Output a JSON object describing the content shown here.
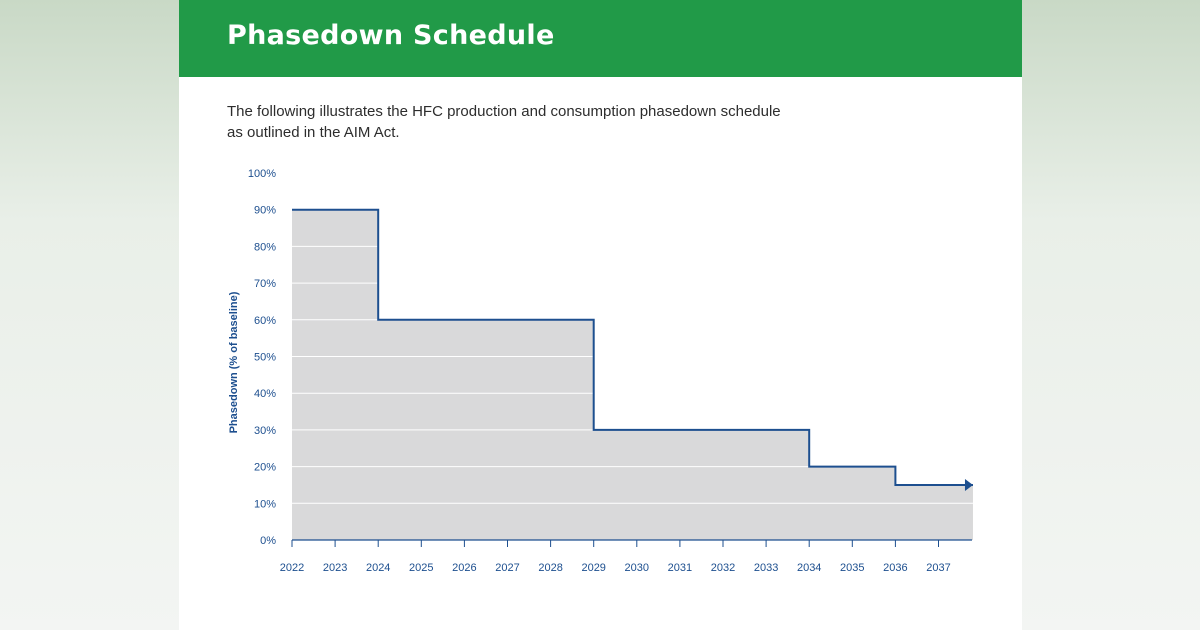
{
  "header": {
    "title": "Phasedown Schedule"
  },
  "intro": {
    "line1": "The following illustrates the HFC production and consumption phasedown schedule",
    "line2": "as outlined in the AIM Act."
  },
  "chart_data": {
    "type": "area",
    "title": "",
    "xlabel": "",
    "ylabel": "Phasedown (% of baseline)",
    "x_ticks": [
      "2022",
      "2023",
      "2024",
      "2025",
      "2026",
      "2027",
      "2028",
      "2029",
      "2030",
      "2031",
      "2032",
      "2033",
      "2034",
      "2035",
      "2036",
      "2037"
    ],
    "y_ticks": [
      "0%",
      "10%",
      "20%",
      "30%",
      "40%",
      "50%",
      "60%",
      "70%",
      "80%",
      "90%",
      "100%"
    ],
    "ylim": [
      0,
      100
    ],
    "xlim": [
      2022,
      2037.8
    ],
    "grid": true,
    "legend": "none",
    "series": [
      {
        "steps": [
          {
            "x_start": 2022,
            "x_end": 2024,
            "y": 90
          },
          {
            "x_start": 2024,
            "x_end": 2029,
            "y": 60
          },
          {
            "x_start": 2029,
            "x_end": 2034,
            "y": 30
          },
          {
            "x_start": 2034,
            "x_end": 2036,
            "y": 20
          },
          {
            "x_start": 2036,
            "x_end": 2037.8,
            "y": 15
          }
        ],
        "continues": true
      }
    ],
    "colors": {
      "fill": "#d9d9da",
      "line": "#1d4f8f",
      "grid": "#ffffff",
      "axis_text": "#1d4f8f"
    }
  }
}
